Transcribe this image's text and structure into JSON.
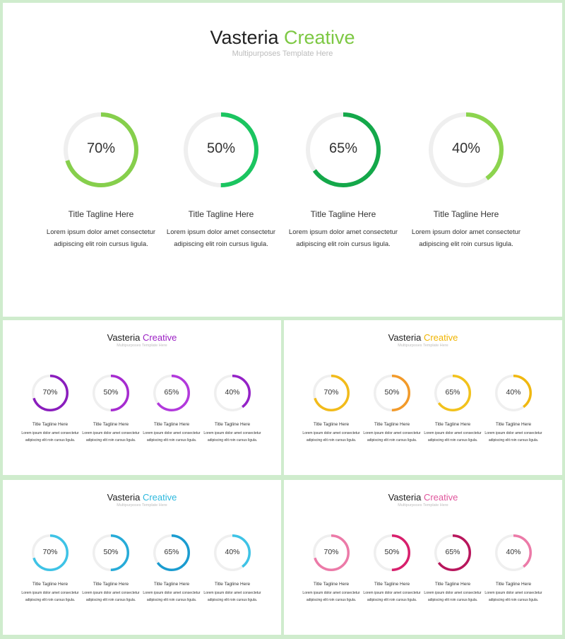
{
  "slides": [
    {
      "title_main": "Vasteria",
      "title_accent": "Creative",
      "subtitle": "Multipurposes Template Here",
      "accent_color": "#7dc843",
      "items": [
        {
          "value": 70,
          "label": "70%",
          "color": "#86cf4c",
          "caption": "Title Tagline  Here",
          "desc": "Lorem ipsum dolor amet consectetur adipiscing elit roin cursus ligula."
        },
        {
          "value": 50,
          "label": "50%",
          "color": "#1bc560",
          "caption": "Title Tagline  Here",
          "desc": "Lorem ipsum dolor amet consectetur adipiscing elit roin cursus ligula."
        },
        {
          "value": 65,
          "label": "65%",
          "color": "#14a84a",
          "caption": "Title Tagline  Here",
          "desc": "Lorem ipsum dolor amet consectetur adipiscing elit roin cursus ligula."
        },
        {
          "value": 40,
          "label": "40%",
          "color": "#8cd44e",
          "caption": "Title Tagline  Here",
          "desc": "Lorem ipsum dolor amet consectetur adipiscing elit roin cursus ligula."
        }
      ]
    },
    {
      "title_main": "Vasteria",
      "title_accent": "Creative",
      "subtitle": "Multipurposes Template Here",
      "accent_color": "#9b1fc4",
      "items": [
        {
          "value": 70,
          "label": "70%",
          "color": "#8a1dbd",
          "caption": "Title Tagline  Here",
          "desc": "Lorem ipsum dolor amet consectetur adipiscing elit roin cursus ligula."
        },
        {
          "value": 50,
          "label": "50%",
          "color": "#a62bd0",
          "caption": "Title Tagline  Here",
          "desc": "Lorem ipsum dolor amet consectetur adipiscing elit roin cursus ligula."
        },
        {
          "value": 65,
          "label": "65%",
          "color": "#b239dc",
          "caption": "Title Tagline  Here",
          "desc": "Lorem ipsum dolor amet consectetur adipiscing elit roin cursus ligula."
        },
        {
          "value": 40,
          "label": "40%",
          "color": "#9422c7",
          "caption": "Title Tagline  Here",
          "desc": "Lorem ipsum dolor amet consectetur adipiscing elit roin cursus ligula."
        }
      ]
    },
    {
      "title_main": "Vasteria",
      "title_accent": "Creative",
      "subtitle": "Multipurposes Template Here",
      "accent_color": "#f0b400",
      "items": [
        {
          "value": 70,
          "label": "70%",
          "color": "#f2bb1a",
          "caption": "Title Tagline  Here",
          "desc": "Lorem ipsum dolor amet consectetur adipiscing elit roin cursus ligula."
        },
        {
          "value": 50,
          "label": "50%",
          "color": "#f29a2a",
          "caption": "Title Tagline  Here",
          "desc": "Lorem ipsum dolor amet consectetur adipiscing elit roin cursus ligula."
        },
        {
          "value": 65,
          "label": "65%",
          "color": "#f2c21c",
          "caption": "Title Tagline  Here",
          "desc": "Lorem ipsum dolor amet consectetur adipiscing elit roin cursus ligula."
        },
        {
          "value": 40,
          "label": "40%",
          "color": "#f0b810",
          "caption": "Title Tagline  Here",
          "desc": "Lorem ipsum dolor amet consectetur adipiscing elit roin cursus ligula."
        }
      ]
    },
    {
      "title_main": "Vasteria",
      "title_accent": "Creative",
      "subtitle": "Multipurposes Template Here",
      "accent_color": "#2cb8de",
      "items": [
        {
          "value": 70,
          "label": "70%",
          "color": "#3ec3e6",
          "caption": "Title Tagline  Here",
          "desc": "Lorem ipsum dolor amet consectetur adipiscing elit roin cursus ligula."
        },
        {
          "value": 50,
          "label": "50%",
          "color": "#26abd8",
          "caption": "Title Tagline  Here",
          "desc": "Lorem ipsum dolor amet consectetur adipiscing elit roin cursus ligula."
        },
        {
          "value": 65,
          "label": "65%",
          "color": "#1a9cd0",
          "caption": "Title Tagline  Here",
          "desc": "Lorem ipsum dolor amet consectetur adipiscing elit roin cursus ligula."
        },
        {
          "value": 40,
          "label": "40%",
          "color": "#3ec3e6",
          "caption": "Title Tagline  Here",
          "desc": "Lorem ipsum dolor amet consectetur adipiscing elit roin cursus ligula."
        }
      ]
    },
    {
      "title_main": "Vasteria",
      "title_accent": "Creative",
      "subtitle": "Multipurposes Template Here",
      "accent_color": "#e0559c",
      "items": [
        {
          "value": 70,
          "label": "70%",
          "color": "#ec7aa8",
          "caption": "Title Tagline  Here",
          "desc": "Lorem ipsum dolor amet consectetur adipiscing elit roin cursus ligula."
        },
        {
          "value": 50,
          "label": "50%",
          "color": "#d81f6c",
          "caption": "Title Tagline  Here",
          "desc": "Lorem ipsum dolor amet consectetur adipiscing elit roin cursus ligula."
        },
        {
          "value": 65,
          "label": "65%",
          "color": "#b8165c",
          "caption": "Title Tagline  Here",
          "desc": "Lorem ipsum dolor amet consectetur adipiscing elit roin cursus ligula."
        },
        {
          "value": 40,
          "label": "40%",
          "color": "#ec7aa8",
          "caption": "Title Tagline  Here",
          "desc": "Lorem ipsum dolor amet consectetur adipiscing elit roin cursus ligula."
        }
      ]
    }
  ]
}
